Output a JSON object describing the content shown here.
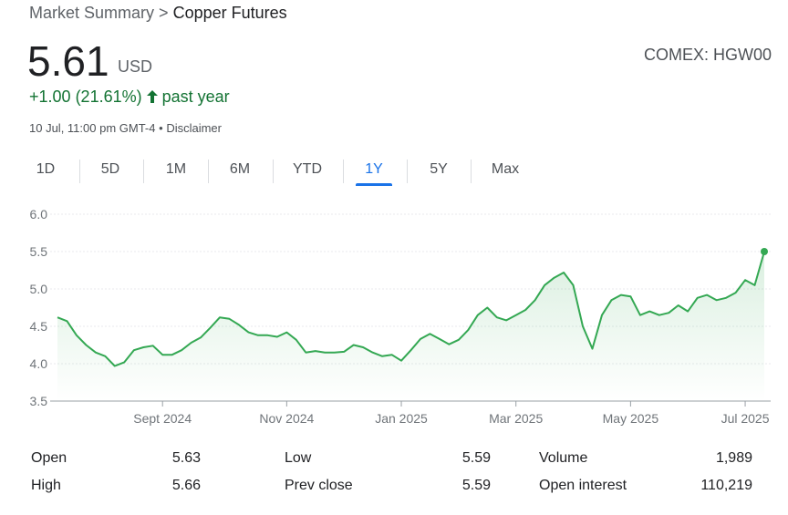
{
  "breadcrumb": {
    "parent": "Market Summary",
    "separator": ">",
    "current": "Copper Futures"
  },
  "quote": {
    "price": "5.61",
    "currency": "USD",
    "exchange": "COMEX: HGW00",
    "change": "+1.00",
    "change_pct": "(21.61%)",
    "period": "past year",
    "timestamp": "10 Jul, 11:00 pm GMT-4",
    "dot": "•",
    "disclaimer": "Disclaimer"
  },
  "tabs": {
    "items": [
      "1D",
      "5D",
      "1M",
      "6M",
      "YTD",
      "1Y",
      "5Y",
      "Max"
    ],
    "selected": 5
  },
  "chart_data": {
    "type": "line",
    "color": "#34a853",
    "grid": true,
    "categories": [
      null,
      null,
      null,
      null,
      null,
      null,
      null,
      null,
      null,
      null,
      null,
      "Sept 2024",
      null,
      null,
      null,
      null,
      null,
      null,
      null,
      null,
      null,
      null,
      null,
      null,
      "Nov 2024",
      null,
      null,
      null,
      null,
      null,
      null,
      null,
      null,
      null,
      null,
      null,
      "Jan 2025",
      null,
      null,
      null,
      null,
      null,
      null,
      null,
      null,
      null,
      null,
      null,
      "Mar 2025",
      null,
      null,
      null,
      null,
      null,
      null,
      null,
      null,
      null,
      null,
      null,
      "May 2025",
      null,
      null,
      null,
      null,
      null,
      null,
      null,
      null,
      null,
      null,
      null,
      "Jul 2025",
      null,
      null
    ],
    "values": [
      4.62,
      4.57,
      4.38,
      4.25,
      4.15,
      4.1,
      3.97,
      4.02,
      4.18,
      4.22,
      4.24,
      4.12,
      4.12,
      4.18,
      4.28,
      4.35,
      4.48,
      4.62,
      4.6,
      4.52,
      4.42,
      4.38,
      4.38,
      4.36,
      4.42,
      4.32,
      4.15,
      4.17,
      4.15,
      4.15,
      4.16,
      4.25,
      4.22,
      4.15,
      4.1,
      4.12,
      4.04,
      4.18,
      4.33,
      4.4,
      4.33,
      4.26,
      4.32,
      4.45,
      4.65,
      4.75,
      4.62,
      4.58,
      4.65,
      4.72,
      4.85,
      5.05,
      5.15,
      5.22,
      5.05,
      4.5,
      4.2,
      4.65,
      4.85,
      4.92,
      4.9,
      4.65,
      4.7,
      4.65,
      4.68,
      4.78,
      4.7,
      4.88,
      4.92,
      4.85,
      4.88,
      4.95,
      5.12,
      5.05,
      5.5
    ],
    "ylim": [
      3.5,
      6.0
    ],
    "yticks": [
      3.5,
      {
        "value": 4,
        "label": "4.0"
      },
      4.5,
      {
        "value": 5,
        "label": "5.0"
      },
      5.5,
      {
        "value": 6,
        "label": "6.0"
      }
    ]
  },
  "stats": [
    [
      {
        "label": "Open",
        "value": "5.63"
      },
      {
        "label": "High",
        "value": "5.66"
      }
    ],
    [
      {
        "label": "Low",
        "value": "5.59"
      },
      {
        "label": "Prev close",
        "value": "5.59"
      }
    ],
    [
      {
        "label": "Volume",
        "value": "1,989"
      },
      {
        "label": "Open interest",
        "value": "110,219"
      }
    ]
  ]
}
